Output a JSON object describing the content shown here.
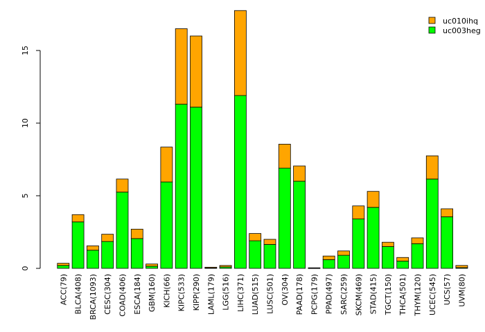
{
  "chart_data": {
    "type": "bar",
    "stacked": true,
    "title": "",
    "xlabel": "",
    "ylabel": "",
    "ylim": [
      0,
      18
    ],
    "y_ticks": [
      0,
      5,
      10,
      15
    ],
    "grid": false,
    "legend_position": "top-right",
    "categories": [
      "ACC(79)",
      "BLCA(408)",
      "BRCA(1093)",
      "CESC(304)",
      "COAD(406)",
      "ESCA(184)",
      "GBM(160)",
      "KICH(66)",
      "KIPC(533)",
      "KIPP(290)",
      "LAML(179)",
      "LGG(516)",
      "LIHC(371)",
      "LUAD(515)",
      "LUSC(501)",
      "OV(304)",
      "PAAD(178)",
      "PCPG(179)",
      "PPAD(497)",
      "SARC(259)",
      "SKCM(469)",
      "STAD(415)",
      "TGCT(150)",
      "THCA(501)",
      "THYM(120)",
      "UCEC(545)",
      "UCS(57)",
      "UVM(80)"
    ],
    "series": [
      {
        "name": "uc003heg",
        "color": "#00ff00",
        "values": [
          0.2,
          3.2,
          1.25,
          1.85,
          5.25,
          2.05,
          0.15,
          5.95,
          11.3,
          11.1,
          0.03,
          0.1,
          11.9,
          1.9,
          1.65,
          6.9,
          6.0,
          0.02,
          0.6,
          0.9,
          3.4,
          4.2,
          1.5,
          0.5,
          1.7,
          6.15,
          3.55,
          0.05
        ]
      },
      {
        "name": "uc010ihq",
        "color": "#ffa500",
        "values": [
          0.15,
          0.5,
          0.3,
          0.5,
          0.9,
          0.65,
          0.15,
          2.4,
          5.2,
          4.9,
          0.05,
          0.1,
          5.85,
          0.5,
          0.35,
          1.65,
          1.05,
          0.02,
          0.25,
          0.3,
          0.9,
          1.1,
          0.3,
          0.25,
          0.4,
          1.6,
          0.55,
          0.15
        ]
      }
    ]
  }
}
